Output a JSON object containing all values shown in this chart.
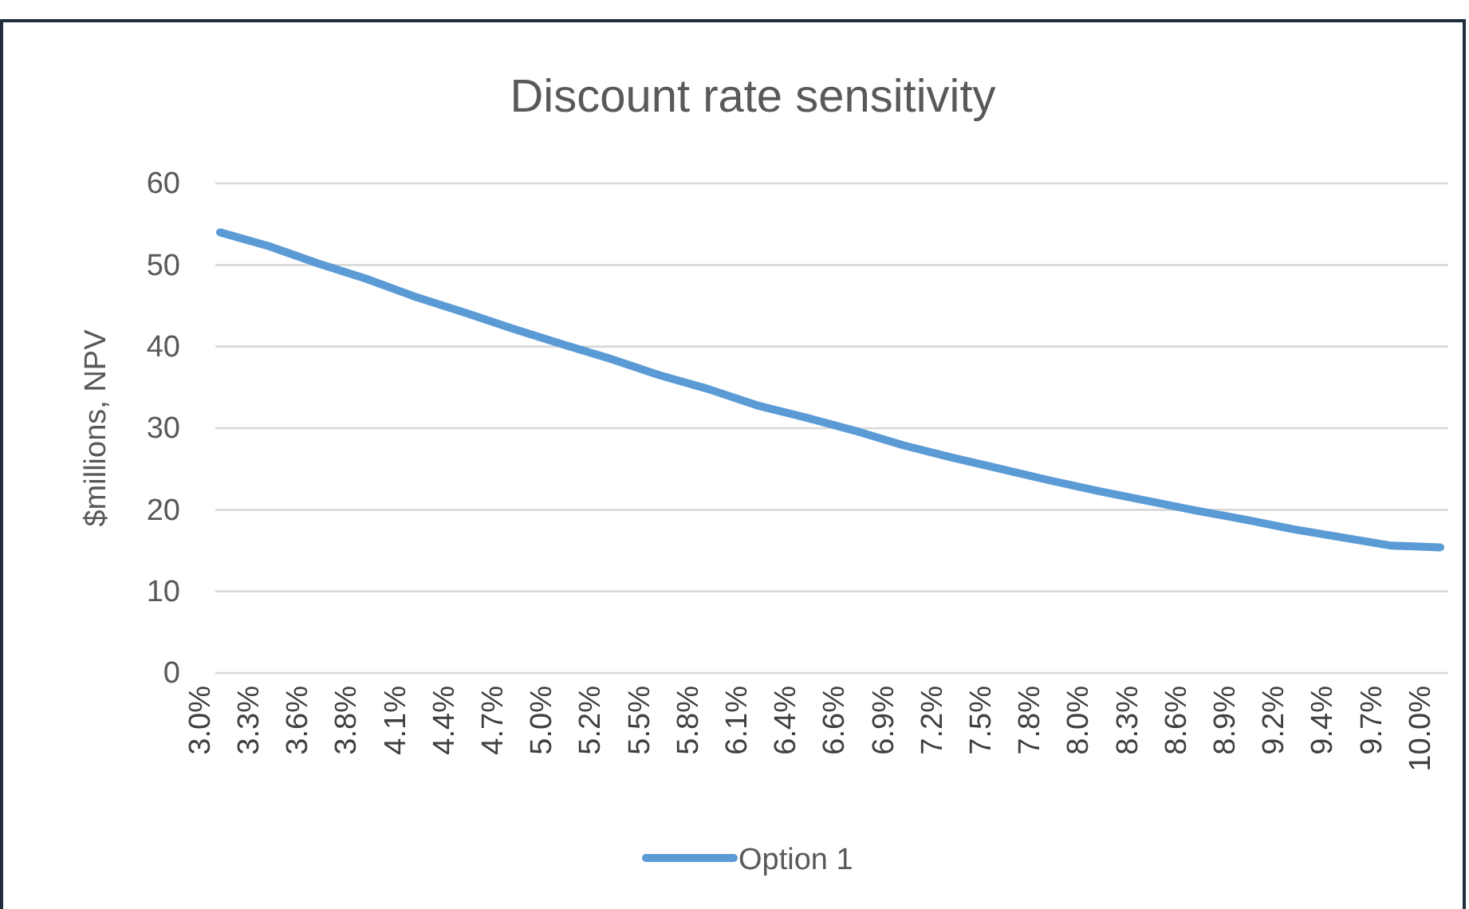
{
  "chart_data": {
    "type": "line",
    "title": "Discount rate sensitivity",
    "ylabel": "$millions, NPV",
    "categories": [
      "3.0%",
      "3.3%",
      "3.6%",
      "3.8%",
      "4.1%",
      "4.4%",
      "4.7%",
      "5.0%",
      "5.2%",
      "5.5%",
      "5.8%",
      "6.1%",
      "6.4%",
      "6.6%",
      "6.9%",
      "7.2%",
      "7.5%",
      "7.8%",
      "8.0%",
      "8.3%",
      "8.6%",
      "8.9%",
      "9.2%",
      "9.4%",
      "9.7%",
      "10.0%"
    ],
    "series": [
      {
        "name": "Option 1",
        "color": "#5b9bd5",
        "values": [
          54,
          52.3,
          50.2,
          48.3,
          46.1,
          44.2,
          42.2,
          40.3,
          38.5,
          36.5,
          34.8,
          32.8,
          31.3,
          29.7,
          27.9,
          26.4,
          25,
          23.6,
          22.3,
          21.1,
          19.9,
          18.8,
          17.6,
          16.6,
          15.6,
          15.4
        ]
      }
    ],
    "ylim": [
      0,
      60
    ],
    "yticks": [
      0,
      10,
      20,
      30,
      40,
      50,
      60
    ],
    "grid": "y",
    "legend": "bottom",
    "marker": "none",
    "line_style": "solid"
  }
}
